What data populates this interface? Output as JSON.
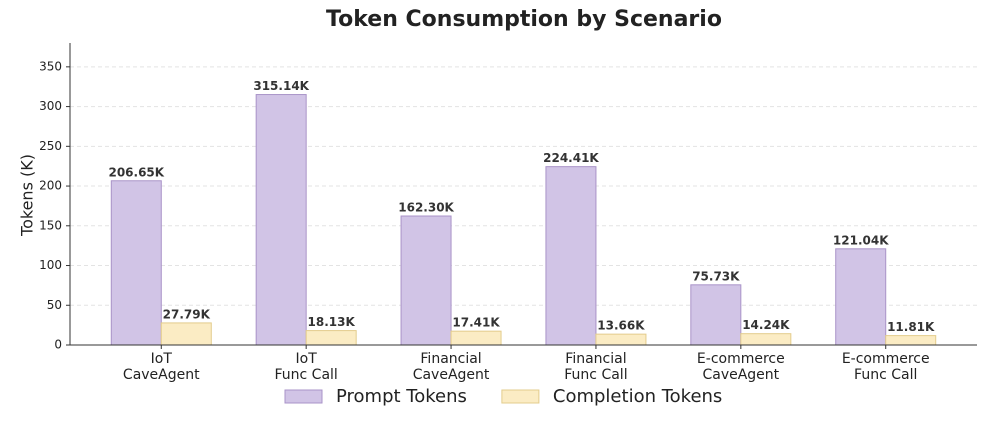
{
  "chart_data": {
    "type": "bar",
    "title": "Token Consumption by Scenario",
    "y_label": "Tokens (K)",
    "categories": [
      [
        "IoT",
        "CaveAgent"
      ],
      [
        "IoT",
        "Func Call"
      ],
      [
        "Financial",
        "CaveAgent"
      ],
      [
        "Financial",
        "Func Call"
      ],
      [
        "E-commerce",
        "CaveAgent"
      ],
      [
        "E-commerce",
        "Func Call"
      ]
    ],
    "series": [
      {
        "name": "Prompt Tokens",
        "color": "#d1c4e6",
        "edge": "#a993c8",
        "values": [
          206.65,
          315.14,
          162.3,
          224.41,
          75.73,
          121.04
        ],
        "value_labels": [
          "206.65K",
          "315.14K",
          "162.30K",
          "224.41K",
          "75.73K",
          "121.04K"
        ]
      },
      {
        "name": "Completion Tokens",
        "color": "#fbecc4",
        "edge": "#e3cc8c",
        "values": [
          27.79,
          18.13,
          17.41,
          13.66,
          14.24,
          11.81
        ],
        "value_labels": [
          "27.79K",
          "18.13K",
          "17.41K",
          "13.66K",
          "14.24K",
          "11.81K"
        ]
      }
    ],
    "ylim": [
      0,
      380
    ],
    "yticks": [
      0,
      50,
      100,
      150,
      200,
      250,
      300,
      350
    ],
    "grid": true,
    "legend": "bottom"
  }
}
